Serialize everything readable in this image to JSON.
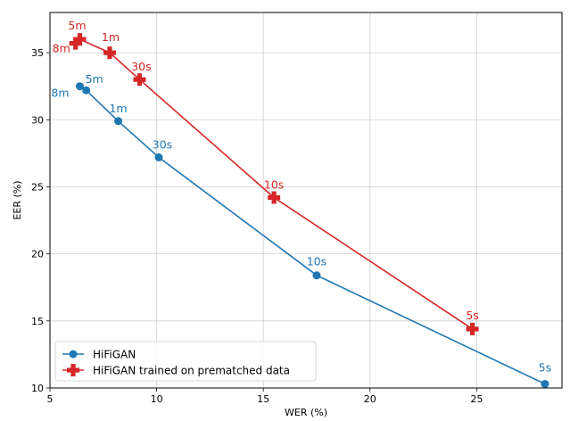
{
  "chart_data": {
    "type": "line",
    "xlabel": "WER (%)",
    "ylabel": "EER (%)",
    "xlim": [
      5,
      29
    ],
    "ylim": [
      10,
      38
    ],
    "x_ticks": [
      5,
      10,
      15,
      20,
      25
    ],
    "y_ticks": [
      10,
      15,
      20,
      25,
      30,
      35
    ],
    "grid": true,
    "legend_position": "lower-left",
    "series": [
      {
        "name": "HiFiGAN",
        "color": "#1f77b4",
        "marker": "circle",
        "points": [
          {
            "x": 6.4,
            "y": 32.5,
            "label": "8m"
          },
          {
            "x": 6.7,
            "y": 32.2,
            "label": "5m"
          },
          {
            "x": 8.2,
            "y": 29.9,
            "label": "1m"
          },
          {
            "x": 10.1,
            "y": 27.2,
            "label": "30s"
          },
          {
            "x": 17.5,
            "y": 18.4,
            "label": "10s"
          },
          {
            "x": 28.2,
            "y": 10.3,
            "label": "5s"
          }
        ]
      },
      {
        "name": "HiFiGAN trained on prematched data",
        "color": "#d62728",
        "marker": "plus",
        "points": [
          {
            "x": 6.2,
            "y": 35.7,
            "label": "8m"
          },
          {
            "x": 6.4,
            "y": 36.0,
            "label": "5m"
          },
          {
            "x": 7.8,
            "y": 35.0,
            "label": "1m"
          },
          {
            "x": 9.2,
            "y": 33.0,
            "label": "30s"
          },
          {
            "x": 15.5,
            "y": 24.2,
            "label": "10s"
          },
          {
            "x": 24.8,
            "y": 14.4,
            "label": "5s"
          }
        ]
      }
    ]
  }
}
